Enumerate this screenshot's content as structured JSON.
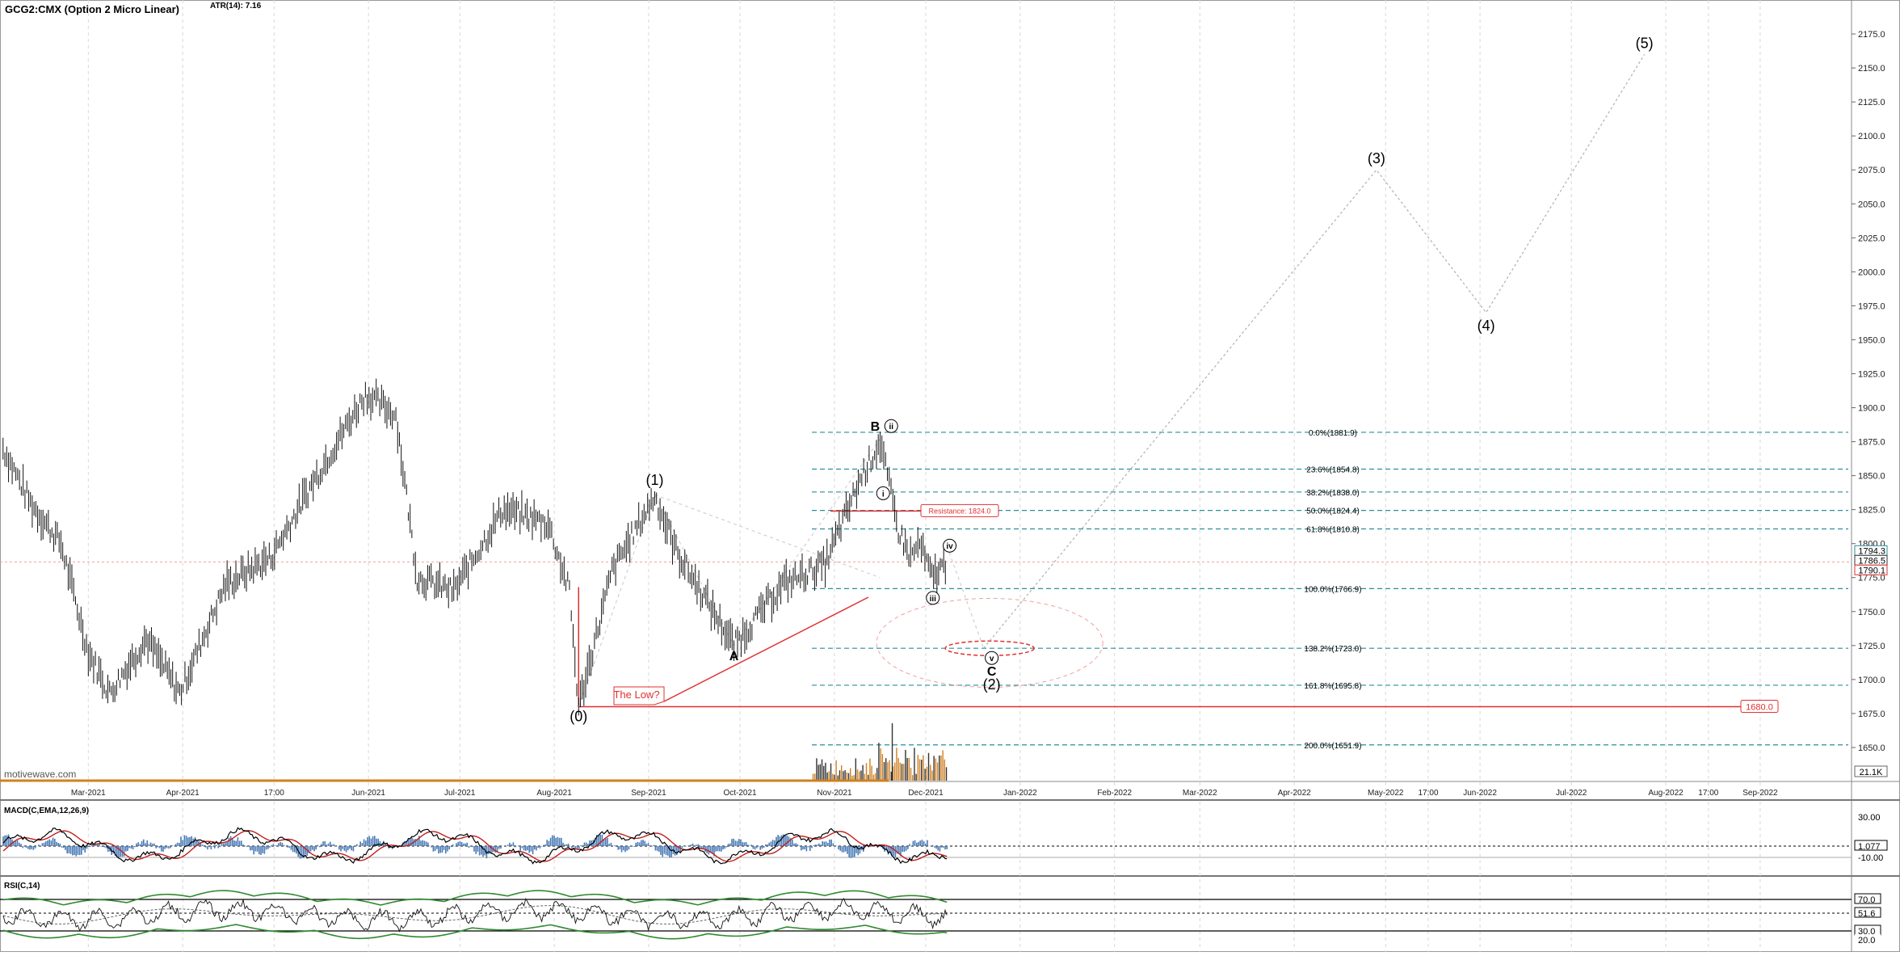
{
  "header": {
    "symbol": "GCG2:CMX (Option 2 Micro Linear)",
    "atr": "ATR(14): 7.16",
    "watermark": "motivewave.com"
  },
  "chart_data": [
    {
      "type": "candlestick",
      "title": "GCG2:CMX (Option 2 Micro Linear)",
      "ylim": [
        1625,
        2200
      ],
      "y_ticks": [
        1650,
        1675,
        1700,
        1725,
        1750,
        1775,
        1800,
        1825,
        1850,
        1875,
        1900,
        1925,
        1950,
        1975,
        2000,
        2025,
        2050,
        2075,
        2100,
        2125,
        2150,
        2175
      ],
      "x_tick_labels": [
        "Mar-2021",
        "Apr-2021",
        "17:00",
        "Jun-2021",
        "Jul-2021",
        "Aug-2021",
        "Sep-2021",
        "Oct-2021",
        "Nov-2021",
        "Dec-2021",
        "Jan-2022",
        "Feb-2022",
        "Mar-2022",
        "Apr-2022",
        "May-2022",
        "17:00",
        "Jun-2022",
        "Jul-2022",
        "Aug-2022",
        "17:00",
        "Sep-2022"
      ],
      "price_path": [
        {
          "x": "2021-02-01",
          "y": 1870
        },
        {
          "x": "2021-02-10",
          "y": 1830
        },
        {
          "x": "2021-02-20",
          "y": 1800
        },
        {
          "x": "2021-03-01",
          "y": 1720
        },
        {
          "x": "2021-03-08",
          "y": 1690
        },
        {
          "x": "2021-03-20",
          "y": 1730
        },
        {
          "x": "2021-03-31",
          "y": 1690
        },
        {
          "x": "2021-04-15",
          "y": 1770
        },
        {
          "x": "2021-04-30",
          "y": 1790
        },
        {
          "x": "2021-05-15",
          "y": 1850
        },
        {
          "x": "2021-05-31",
          "y": 1910
        },
        {
          "x": "2021-06-10",
          "y": 1895
        },
        {
          "x": "2021-06-17",
          "y": 1775
        },
        {
          "x": "2021-06-29",
          "y": 1765
        },
        {
          "x": "2021-07-15",
          "y": 1825
        },
        {
          "x": "2021-07-30",
          "y": 1815
        },
        {
          "x": "2021-08-06",
          "y": 1765
        },
        {
          "x": "2021-08-09",
          "y": 1680
        },
        {
          "x": "2021-08-20",
          "y": 1780
        },
        {
          "x": "2021-09-03",
          "y": 1835
        },
        {
          "x": "2021-09-10",
          "y": 1795
        },
        {
          "x": "2021-09-29",
          "y": 1725
        },
        {
          "x": "2021-10-15",
          "y": 1770
        },
        {
          "x": "2021-10-29",
          "y": 1785
        },
        {
          "x": "2021-11-10",
          "y": 1850
        },
        {
          "x": "2021-11-16",
          "y": 1875
        },
        {
          "x": "2021-11-22",
          "y": 1810
        },
        {
          "x": "2021-11-26",
          "y": 1790
        },
        {
          "x": "2021-11-29",
          "y": 1800
        },
        {
          "x": "2021-12-03",
          "y": 1775
        },
        {
          "x": "2021-12-08",
          "y": 1786.5
        }
      ],
      "last_price_labels": [
        "1794.3",
        "1786.5",
        "1790.1"
      ],
      "fibonacci_levels": [
        {
          "label": "0.0%(1881.9)",
          "value": 1881.9
        },
        {
          "label": "23.6%(1854.8)",
          "value": 1854.8
        },
        {
          "label": "38.2%(1838.0)",
          "value": 1838.0
        },
        {
          "label": "50.0%(1824.4)",
          "value": 1824.4
        },
        {
          "label": "61.8%(1810.8)",
          "value": 1810.8
        },
        {
          "label": "100.0%(1766.9)",
          "value": 1766.9
        },
        {
          "label": "138.2%(1723.0)",
          "value": 1723.0
        },
        {
          "label": "161.8%(1695.8)",
          "value": 1695.8
        },
        {
          "label": "200.0%(1651.9)",
          "value": 1651.9
        }
      ],
      "annotations": [
        {
          "text": "Resistance: 1824.0",
          "value": 1824.0
        },
        {
          "text": "1680.0",
          "value": 1680.0
        },
        {
          "text": "The Low?",
          "value": 1695
        }
      ],
      "wave_labels": [
        {
          "text": "(0)",
          "x": "2021-08-09",
          "y": 1680
        },
        {
          "text": "(1)",
          "x": "2021-09-03",
          "y": 1836
        },
        {
          "text": "A",
          "x": "2021-09-29",
          "y": 1725
        },
        {
          "text": "B",
          "x": "2021-11-16",
          "y": 1877
        },
        {
          "text": "ii",
          "x": "2021-11-17",
          "y": 1877
        },
        {
          "text": "i",
          "x": "2021-11-17",
          "y": 1843
        },
        {
          "text": "iii",
          "x": "2021-12-02",
          "y": 1766
        },
        {
          "text": "iv",
          "x": "2021-12-03",
          "y": 1808
        },
        {
          "text": "v",
          "x": "2021-12-20",
          "y": 1723
        },
        {
          "text": "C",
          "x": "2021-12-20",
          "y": 1723
        },
        {
          "text": "(2)",
          "x": "2021-12-20",
          "y": 1723
        },
        {
          "text": "(3)",
          "x": "2022-04-28",
          "y": 2075
        },
        {
          "text": "(4)",
          "x": "2022-06-03",
          "y": 1970
        },
        {
          "text": "(5)",
          "x": "2022-07-25",
          "y": 2160
        }
      ],
      "projection_path": [
        {
          "x": "2021-12-20",
          "y": 1723
        },
        {
          "x": "2022-04-28",
          "y": 2075
        },
        {
          "x": "2022-06-03",
          "y": 1970
        },
        {
          "x": "2022-07-25",
          "y": 2160
        }
      ],
      "volume_label": "21.1K"
    },
    {
      "type": "line",
      "title": "MACD(C,EMA,12,26,9)",
      "y_tick_labels": [
        "30.00",
        "1.077",
        "-10.00"
      ],
      "series": [
        {
          "name": "MACD"
        },
        {
          "name": "Signal"
        },
        {
          "name": "Histogram"
        }
      ]
    },
    {
      "type": "line",
      "title": "RSI(C,14)",
      "y_tick_labels": [
        "70.0",
        "51.6",
        "30.0",
        "20.0"
      ],
      "series": [
        {
          "name": "RSI"
        }
      ]
    }
  ],
  "colors": {
    "fib": "#2a8f9a",
    "red": "#e03030",
    "projection": "#b0b0b0",
    "macd_line": "#000000",
    "macd_signal": "#c02020",
    "macd_hist": "#4a7ab5",
    "rsi_band": "#2e8b2e",
    "axis_text": "#222222"
  }
}
